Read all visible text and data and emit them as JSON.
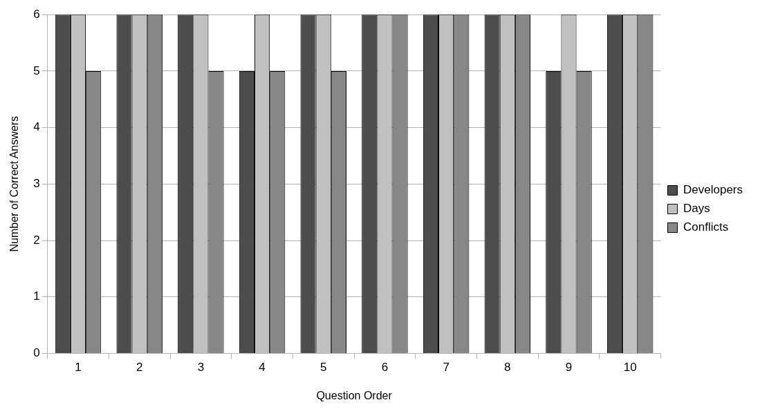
{
  "chart_data": {
    "type": "bar",
    "xlabel": "Question Order",
    "ylabel": "Number of Correct Answers",
    "categories": [
      "1",
      "2",
      "3",
      "4",
      "5",
      "6",
      "7",
      "8",
      "9",
      "10"
    ],
    "series": [
      {
        "name": "Developers",
        "color": "#4d4d4d",
        "values": [
          6,
          6,
          6,
          5,
          6,
          6,
          6,
          6,
          5,
          6
        ]
      },
      {
        "name": "Days",
        "color": "#c0c0c0",
        "values": [
          6,
          6,
          6,
          6,
          6,
          6,
          6,
          6,
          6,
          6
        ]
      },
      {
        "name": "Conflicts",
        "color": "#878787",
        "values": [
          5,
          6,
          5,
          5,
          5,
          6,
          6,
          6,
          5,
          6
        ]
      }
    ],
    "ylim": [
      0,
      6
    ],
    "yticks": [
      0,
      1,
      2,
      3,
      4,
      5,
      6
    ],
    "grid": "y",
    "legend": "right"
  }
}
